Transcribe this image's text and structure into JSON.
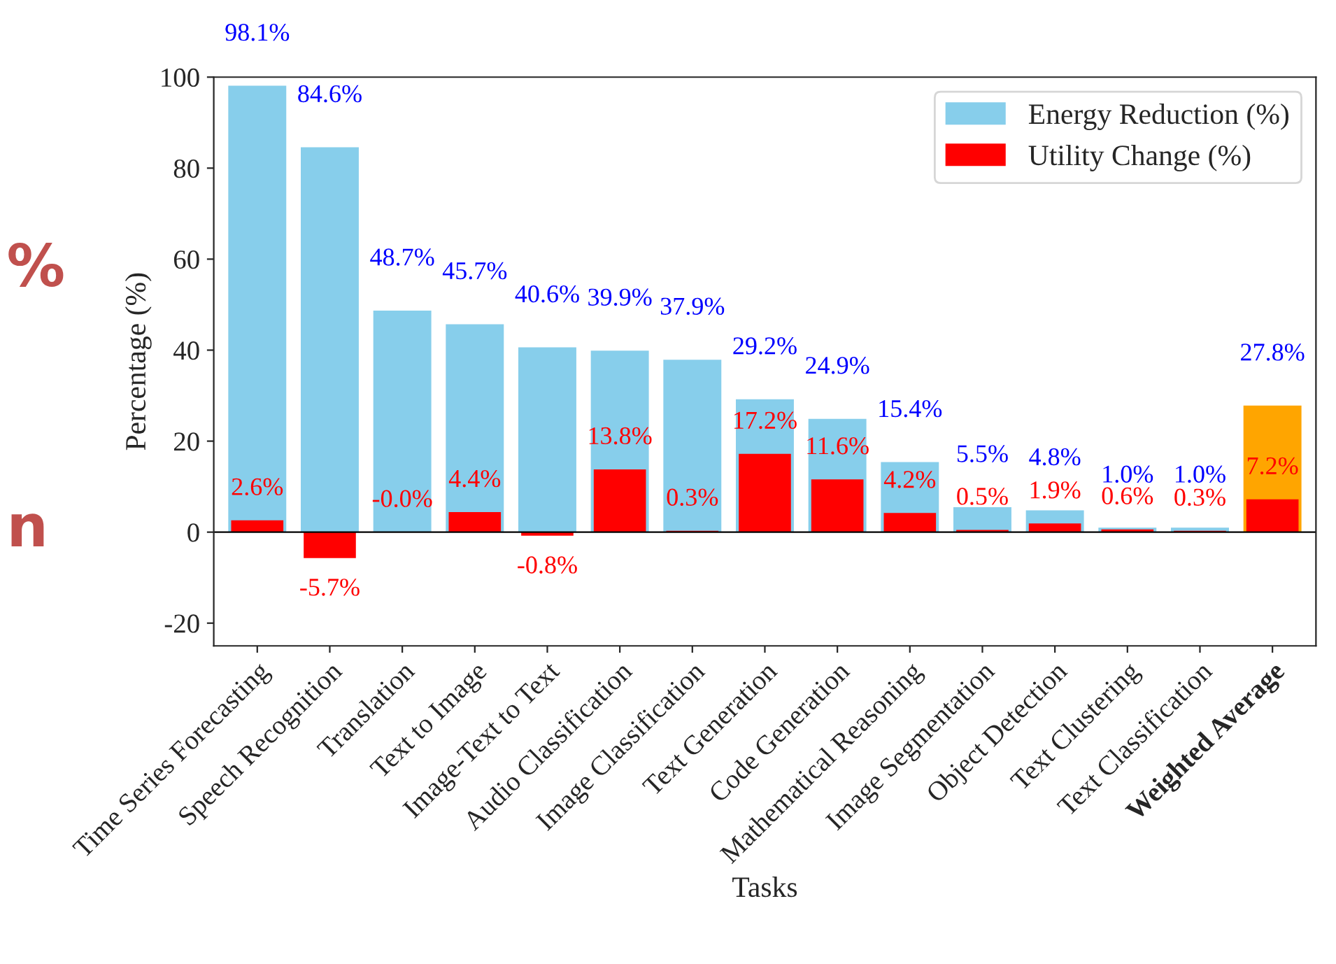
{
  "chart_data": {
    "type": "bar",
    "categories": [
      "Time Series Forecasting",
      "Speech Recognition",
      "Translation",
      "Text to Image",
      "Image-Text to Text",
      "Audio Classification",
      "Image Classification",
      "Text Generation",
      "Code Generation",
      "Mathematical Reasoning",
      "Image Segmentation",
      "Object Detection",
      "Text Clustering",
      "Text Classification",
      "Weighted Average"
    ],
    "series": [
      {
        "name": "Energy Reduction (%)",
        "color": "#87ceeb",
        "colors": [
          "#87ceeb",
          "#87ceeb",
          "#87ceeb",
          "#87ceeb",
          "#87ceeb",
          "#87ceeb",
          "#87ceeb",
          "#87ceeb",
          "#87ceeb",
          "#87ceeb",
          "#87ceeb",
          "#87ceeb",
          "#87ceeb",
          "#87ceeb",
          "#ffa500"
        ],
        "values": [
          98.1,
          84.6,
          48.7,
          45.7,
          40.6,
          39.9,
          37.9,
          29.2,
          24.9,
          15.4,
          5.5,
          4.8,
          1.0,
          1.0,
          27.8
        ],
        "value_labels": [
          "98.1%",
          "84.6%",
          "48.7%",
          "45.7%",
          "40.6%",
          "39.9%",
          "37.9%",
          "29.2%",
          "24.9%",
          "15.4%",
          "5.5%",
          "4.8%",
          "1.0%",
          "1.0%",
          "27.8%"
        ]
      },
      {
        "name": "Utility Change (%)",
        "color": "#ff0000",
        "values": [
          2.6,
          -5.7,
          -0.0,
          4.4,
          -0.8,
          13.8,
          0.3,
          17.2,
          11.6,
          4.2,
          0.5,
          1.9,
          0.6,
          0.3,
          7.2
        ],
        "value_labels": [
          "2.6%",
          "-5.7%",
          "-0.0%",
          "4.4%",
          "-0.8%",
          "13.8%",
          "0.3%",
          "17.2%",
          "11.6%",
          "4.2%",
          "0.5%",
          "1.9%",
          "0.6%",
          "0.3%",
          "7.2%"
        ]
      }
    ],
    "xlabel": "Tasks",
    "ylabel": "Percentage (%)",
    "ylim": [
      -25,
      100
    ],
    "yticks": [
      -20,
      0,
      20,
      40,
      60,
      80,
      100
    ],
    "ref_lines": [
      {
        "axis": "y",
        "value": 0,
        "color": "#000000"
      }
    ],
    "annotations": [
      "%",
      "n"
    ],
    "legend": "top right",
    "grid": false
  }
}
